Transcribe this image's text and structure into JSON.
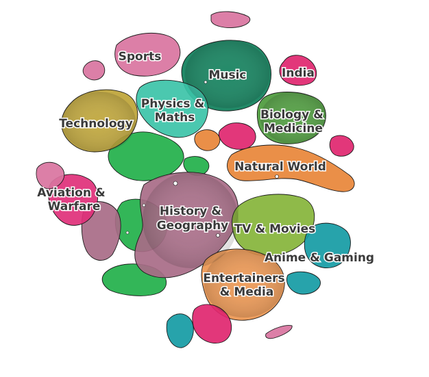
{
  "regions": [
    {
      "key": "sports",
      "lines": [
        "Sports"
      ],
      "color": "#d9749f"
    },
    {
      "key": "music",
      "lines": [
        "Music"
      ],
      "color": "#0e7f5a"
    },
    {
      "key": "india",
      "lines": [
        "India"
      ],
      "color": "#e0266f"
    },
    {
      "key": "physics",
      "lines": [
        "Physics &",
        "Maths"
      ],
      "color": "#3cc3a8"
    },
    {
      "key": "technology",
      "lines": [
        "Technology"
      ],
      "color": "#bea437"
    },
    {
      "key": "biology",
      "lines": [
        "Biology &",
        "Medicine"
      ],
      "color": "#4c9a3c"
    },
    {
      "key": "natural",
      "lines": [
        "Natural World"
      ],
      "color": "#e88538"
    },
    {
      "key": "aviation",
      "lines": [
        "Aviation &",
        "Warfare"
      ],
      "color": "#e0307a"
    },
    {
      "key": "history",
      "lines": [
        "History &",
        "Geography"
      ],
      "color": "#a86b87"
    },
    {
      "key": "tv",
      "lines": [
        "TV & Movies"
      ],
      "color": "#86b43a"
    },
    {
      "key": "anime",
      "lines": [
        "Anime & Gaming"
      ],
      "color": "#159ba4"
    },
    {
      "key": "entertainers",
      "lines": [
        "Entertainers",
        "& Media"
      ],
      "color": "#ec9650"
    },
    {
      "key": "green",
      "lines": [],
      "color": "#22b04a"
    }
  ]
}
